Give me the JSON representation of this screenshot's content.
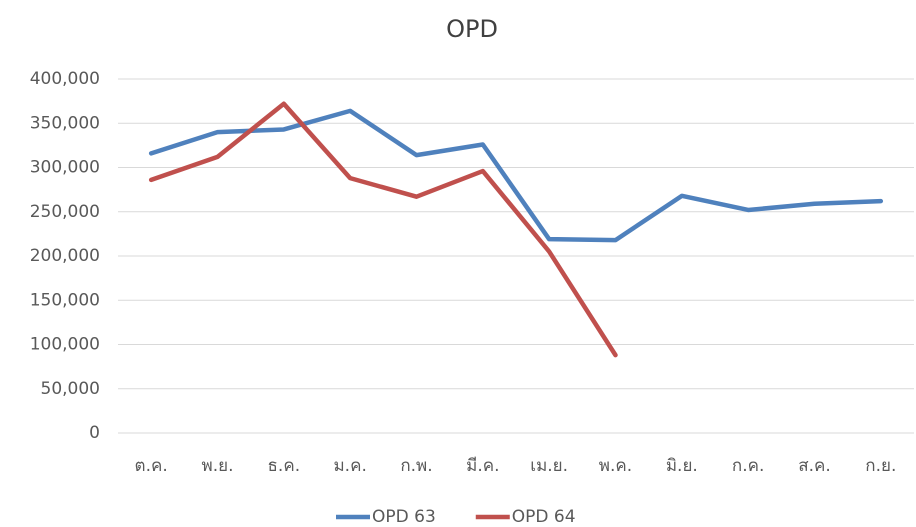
{
  "chart_data": {
    "type": "line",
    "title": "OPD",
    "categories": [
      "ต.ค.",
      "พ.ย.",
      "ธ.ค.",
      "ม.ค.",
      "ก.พ.",
      "มี.ค.",
      "เม.ย.",
      "พ.ค.",
      "มิ.ย.",
      "ก.ค.",
      "ส.ค.",
      "ก.ย."
    ],
    "series": [
      {
        "name": "OPD 63",
        "color": "#4f81bd",
        "values": [
          316000,
          340000,
          343000,
          364000,
          314000,
          326000,
          219000,
          218000,
          268000,
          252000,
          259000,
          262000
        ]
      },
      {
        "name": "OPD 64",
        "color": "#c0504d",
        "values": [
          286000,
          312000,
          372000,
          288000,
          267000,
          296000,
          205000,
          88000,
          null,
          null,
          null,
          null
        ]
      }
    ],
    "ylim": [
      0,
      400000
    ],
    "yticks": [
      {
        "value": 0,
        "label": "0"
      },
      {
        "value": 50000,
        "label": "50,000"
      },
      {
        "value": 100000,
        "label": "100,000"
      },
      {
        "value": 150000,
        "label": "150,000"
      },
      {
        "value": 200000,
        "label": "200,000"
      },
      {
        "value": 250000,
        "label": "250,000"
      },
      {
        "value": 300000,
        "label": "300,000"
      },
      {
        "value": 350000,
        "label": "350,000"
      },
      {
        "value": 400000,
        "label": "400,000"
      }
    ],
    "grid": true,
    "legend": "bottom"
  }
}
